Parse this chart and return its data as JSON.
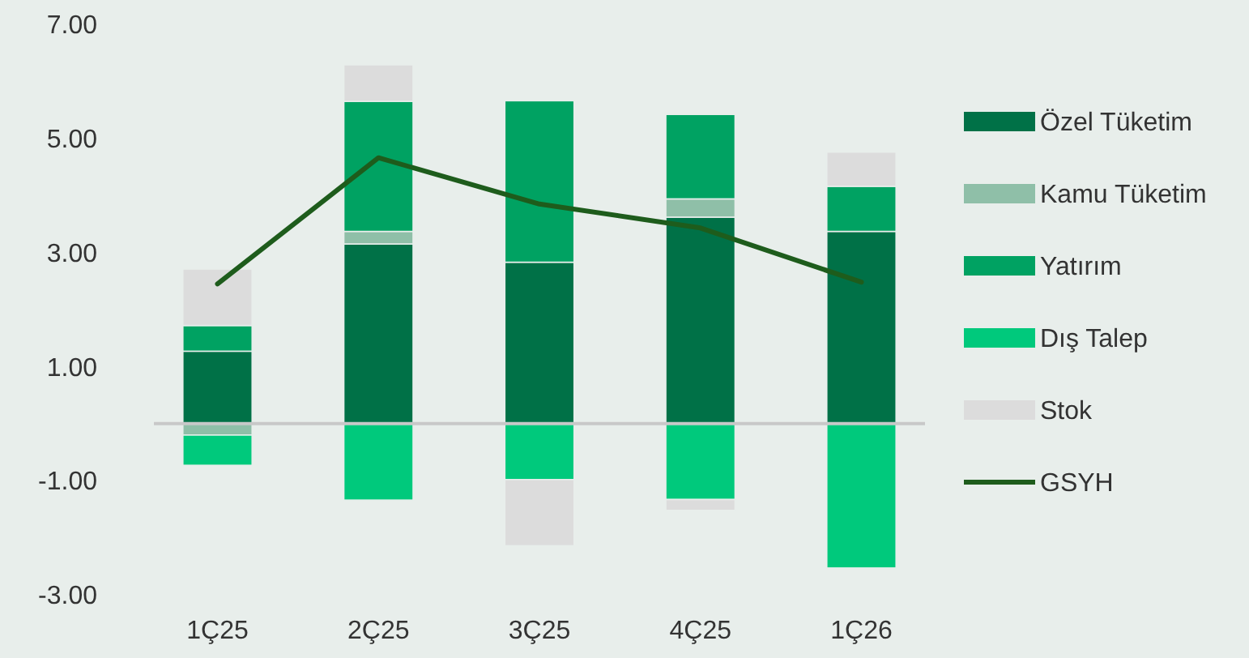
{
  "chart_data": {
    "type": "bar",
    "stacked": true,
    "categories": [
      "1Ç25",
      "2Ç25",
      "3Ç25",
      "4Ç25",
      "1Ç26"
    ],
    "series": [
      {
        "name": "Özel Tüketim",
        "color": "#007147",
        "values": [
          1.27,
          3.15,
          2.83,
          3.62,
          3.37
        ]
      },
      {
        "name": "Kamu Tüketim",
        "color": "#8fbfa8",
        "values": [
          -0.2,
          0.22,
          null,
          0.32,
          null
        ]
      },
      {
        "name": "Yatırım",
        "color": "#00a262",
        "values": [
          0.45,
          2.28,
          2.83,
          1.48,
          0.79
        ]
      },
      {
        "name": "Dış Talep",
        "color": "#00c97c",
        "values": [
          -0.53,
          -1.34,
          -0.98,
          -1.33,
          -2.53
        ]
      },
      {
        "name": "Stok",
        "color": "#dcdcdc",
        "values": [
          0.99,
          0.64,
          -1.16,
          -0.19,
          0.6
        ]
      },
      {
        "name": "GSYH",
        "type": "line",
        "color": "#1e5c1c",
        "values": [
          2.45,
          4.66,
          3.85,
          3.43,
          2.48
        ]
      }
    ],
    "ylim": [
      -3,
      7
    ],
    "yticks": [
      {
        "value": -3,
        "label": "-3.00"
      },
      {
        "value": -1,
        "label": "-1.00"
      },
      {
        "value": 1,
        "label": "1.00"
      },
      {
        "value": 3,
        "label": "3.00"
      },
      {
        "value": 5,
        "label": "5.00"
      },
      {
        "value": 7,
        "label": "7.00"
      }
    ],
    "legend": "right"
  }
}
